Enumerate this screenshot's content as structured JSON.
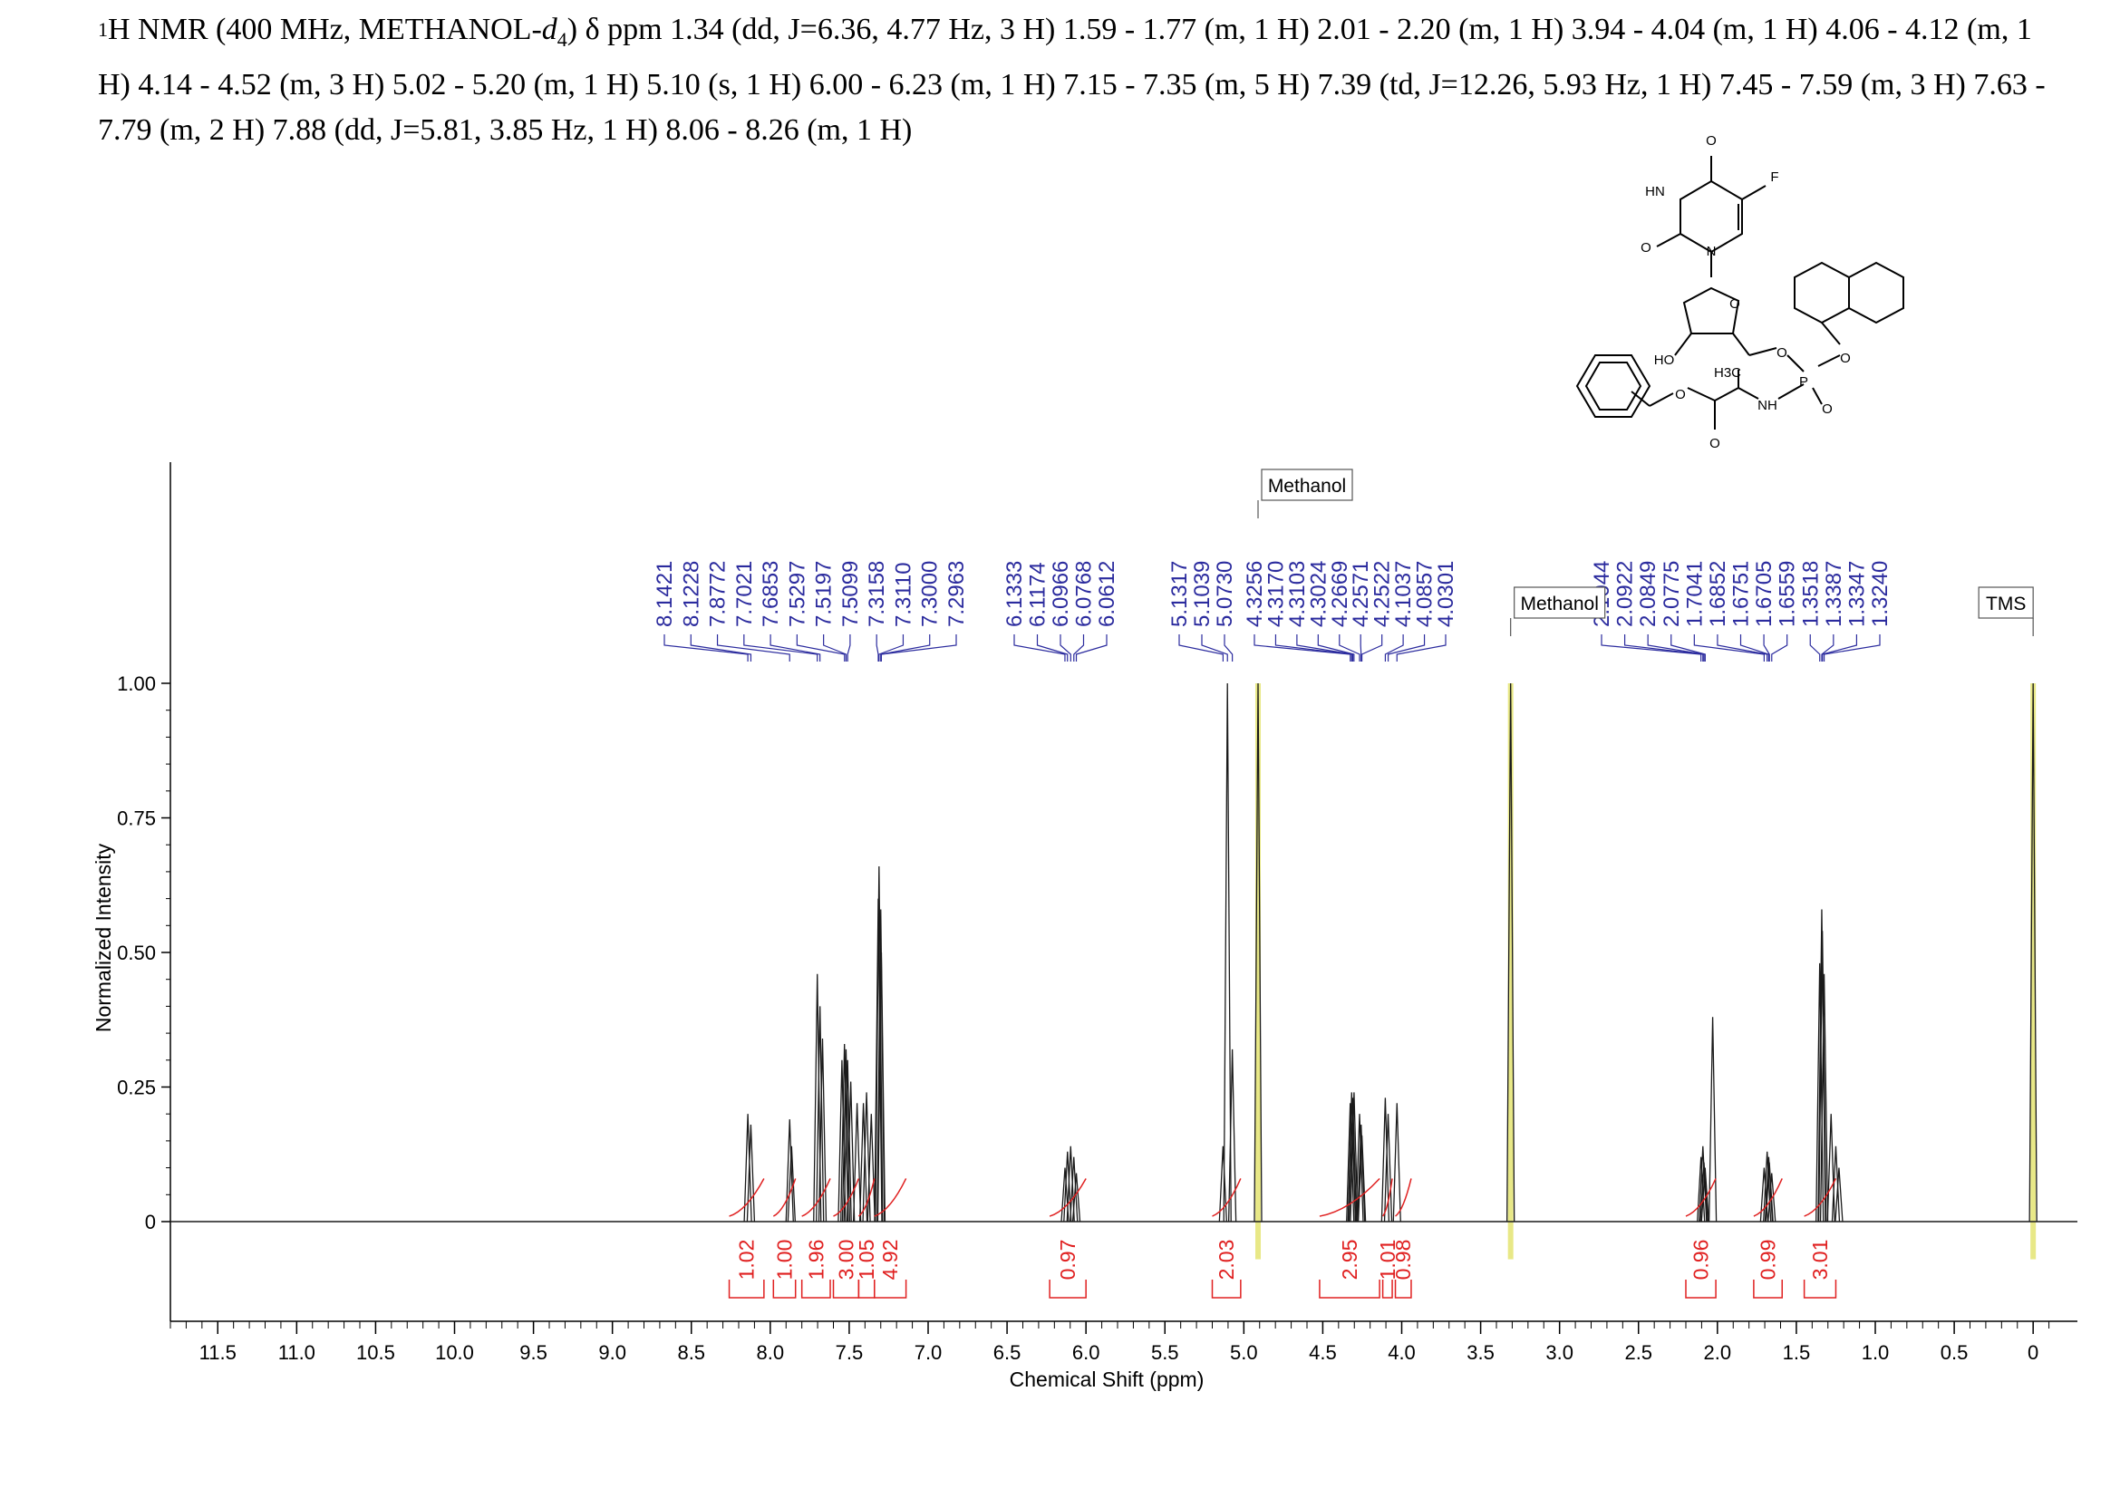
{
  "header": {
    "nucleus_sup": "1",
    "text_a": "H NMR (400 MHz, METHANOL-",
    "text_d": "d",
    "text_sub": "4",
    "text_b": ") δ ppm 1.34 (dd, J=6.36, 4.77 Hz, 3 H) 1.59 - 1.77 (m, 1 H) 2.01 - 2.20 (m, 1 H) 3.94 - 4.04 (m, 1 H) 4.06 - 4.12 (m, 1 H) 4.14 - 4.52 (m, 3 H) 5.02 - 5.20 (m, 1 H) 5.10 (s, 1 H) 6.00 - 6.23 (m, 1 H) 7.15 - 7.35 (m, 5 H) 7.39 (td, J=12.26, 5.93 Hz, 1 H) 7.45 - 7.59 (m, 3 H) 7.63 - 7.79 (m, 2 H) 7.88 (dd, J=5.81, 3.85 Hz, 1 H) 8.06 - 8.26 (m, 1 H)"
  },
  "structure": {
    "atom_labels": [
      "O",
      "F",
      "HN",
      "O",
      "N",
      "O",
      "HO",
      "O",
      "H3C",
      "P",
      "O",
      "NH",
      "O",
      "O",
      "O"
    ]
  },
  "chart_data": {
    "type": "line",
    "xlabel": "Chemical Shift (ppm)",
    "ylabel": "Normalized Intensity",
    "xlim": [
      11.8,
      -0.2
    ],
    "ylim": [
      -0.18,
      1.4
    ],
    "x_reversed": true,
    "x_ticks": [
      11.5,
      11.0,
      10.5,
      10.0,
      9.5,
      9.0,
      8.5,
      8.0,
      7.5,
      7.0,
      6.5,
      6.0,
      5.5,
      5.0,
      4.5,
      4.0,
      3.5,
      3.0,
      2.5,
      2.0,
      1.5,
      1.0,
      0.5,
      0
    ],
    "x_tick_labels": [
      "11.5",
      "11.0",
      "10.5",
      "10.0",
      "9.5",
      "9.0",
      "8.5",
      "8.0",
      "7.5",
      "7.0",
      "6.5",
      "6.0",
      "5.5",
      "5.0",
      "4.5",
      "4.0",
      "3.5",
      "3.0",
      "2.5",
      "2.0",
      "1.5",
      "1.0",
      "0.5",
      "0"
    ],
    "y_ticks": [
      0,
      0.25,
      0.5,
      0.75,
      1.0
    ],
    "y_tick_labels": [
      "0",
      "0.25",
      "0.50",
      "0.75",
      "1.00"
    ],
    "peaks": [
      {
        "ppm": 8.142,
        "h": 0.2
      },
      {
        "ppm": 8.123,
        "h": 0.18
      },
      {
        "ppm": 7.877,
        "h": 0.19
      },
      {
        "ppm": 7.865,
        "h": 0.14
      },
      {
        "ppm": 7.702,
        "h": 0.46
      },
      {
        "ppm": 7.685,
        "h": 0.4
      },
      {
        "ppm": 7.669,
        "h": 0.34
      },
      {
        "ppm": 7.546,
        "h": 0.3
      },
      {
        "ppm": 7.53,
        "h": 0.33
      },
      {
        "ppm": 7.52,
        "h": 0.32
      },
      {
        "ppm": 7.51,
        "h": 0.3
      },
      {
        "ppm": 7.49,
        "h": 0.26
      },
      {
        "ppm": 7.45,
        "h": 0.22
      },
      {
        "ppm": 7.41,
        "h": 0.22
      },
      {
        "ppm": 7.39,
        "h": 0.24
      },
      {
        "ppm": 7.36,
        "h": 0.2
      },
      {
        "ppm": 7.316,
        "h": 0.6
      },
      {
        "ppm": 7.311,
        "h": 0.66
      },
      {
        "ppm": 7.3,
        "h": 0.58
      },
      {
        "ppm": 7.296,
        "h": 0.5
      },
      {
        "ppm": 6.133,
        "h": 0.1
      },
      {
        "ppm": 6.117,
        "h": 0.13
      },
      {
        "ppm": 6.097,
        "h": 0.14
      },
      {
        "ppm": 6.077,
        "h": 0.12
      },
      {
        "ppm": 6.061,
        "h": 0.09
      },
      {
        "ppm": 5.132,
        "h": 0.14
      },
      {
        "ppm": 5.104,
        "h": 1.0
      },
      {
        "ppm": 5.073,
        "h": 0.32
      },
      {
        "ppm": 4.91,
        "h": 1.0
      },
      {
        "ppm": 4.326,
        "h": 0.22
      },
      {
        "ppm": 4.317,
        "h": 0.24
      },
      {
        "ppm": 4.31,
        "h": 0.23
      },
      {
        "ppm": 4.302,
        "h": 0.24
      },
      {
        "ppm": 4.267,
        "h": 0.2
      },
      {
        "ppm": 4.257,
        "h": 0.18
      },
      {
        "ppm": 4.252,
        "h": 0.16
      },
      {
        "ppm": 4.104,
        "h": 0.23
      },
      {
        "ppm": 4.086,
        "h": 0.2
      },
      {
        "ppm": 4.03,
        "h": 0.22
      },
      {
        "ppm": 3.31,
        "h": 1.0
      },
      {
        "ppm": 2.104,
        "h": 0.12
      },
      {
        "ppm": 2.092,
        "h": 0.14
      },
      {
        "ppm": 2.085,
        "h": 0.11
      },
      {
        "ppm": 2.078,
        "h": 0.1
      },
      {
        "ppm": 2.03,
        "h": 0.38
      },
      {
        "ppm": 1.704,
        "h": 0.1
      },
      {
        "ppm": 1.685,
        "h": 0.13
      },
      {
        "ppm": 1.675,
        "h": 0.12
      },
      {
        "ppm": 1.671,
        "h": 0.11
      },
      {
        "ppm": 1.656,
        "h": 0.09
      },
      {
        "ppm": 1.352,
        "h": 0.48
      },
      {
        "ppm": 1.339,
        "h": 0.58
      },
      {
        "ppm": 1.335,
        "h": 0.54
      },
      {
        "ppm": 1.324,
        "h": 0.46
      },
      {
        "ppm": 1.28,
        "h": 0.2
      },
      {
        "ppm": 1.25,
        "h": 0.14
      },
      {
        "ppm": 1.23,
        "h": 0.1
      },
      {
        "ppm": 0.0,
        "h": 1.0
      }
    ],
    "peak_label_groups": [
      {
        "labels": [
          "8.1421",
          "8.1228",
          "7.8772",
          "7.7021",
          "7.6853",
          "7.5297",
          "7.5197",
          "7.5099",
          "7.3158",
          "7.3110",
          "7.3000",
          "7.2963"
        ]
      },
      {
        "labels": [
          "6.1333",
          "6.1174",
          "6.0966",
          "6.0768",
          "6.0612"
        ]
      },
      {
        "labels": [
          "5.1317",
          "5.1039",
          "5.0730"
        ]
      },
      {
        "labels": [
          "4.3256",
          "4.3170",
          "4.3103",
          "4.3024",
          "4.2669",
          "4.2571",
          "4.2522",
          "4.1037",
          "4.0857",
          "4.0301"
        ]
      },
      {
        "labels": [
          "2.1044",
          "2.0922",
          "2.0849",
          "2.0775",
          "1.7041",
          "1.6852",
          "1.6751",
          "1.6705",
          "1.6559",
          "1.3518",
          "1.3387",
          "1.3347",
          "1.3240"
        ]
      }
    ],
    "integrals": [
      {
        "label": "1.02",
        "from": 8.26,
        "to": 8.04
      },
      {
        "label": "1.00",
        "from": 7.98,
        "to": 7.84
      },
      {
        "label": "1.96",
        "from": 7.8,
        "to": 7.62
      },
      {
        "label": "3.00",
        "from": 7.6,
        "to": 7.44
      },
      {
        "label": "1.05",
        "from": 7.44,
        "to": 7.34
      },
      {
        "label": "4.92",
        "from": 7.34,
        "to": 7.14
      },
      {
        "label": "0.97",
        "from": 6.23,
        "to": 6.0
      },
      {
        "label": "2.03",
        "from": 5.2,
        "to": 5.02
      },
      {
        "label": "2.95",
        "from": 4.52,
        "to": 4.14
      },
      {
        "label": "1.01",
        "from": 4.12,
        "to": 4.06
      },
      {
        "label": "0.98",
        "from": 4.04,
        "to": 3.94
      },
      {
        "label": "0.96",
        "from": 2.2,
        "to": 2.01
      },
      {
        "label": "0.99",
        "from": 1.77,
        "to": 1.59
      },
      {
        "label": "3.01",
        "from": 1.45,
        "to": 1.25
      }
    ],
    "annotations": [
      {
        "text": "Methanol",
        "ppm": 4.91
      },
      {
        "text": "Methanol",
        "ppm": 3.31
      },
      {
        "text": "TMS",
        "ppm": 0.0
      }
    ],
    "colors": {
      "spectrum": "#1a1a1a",
      "peak_labels": "#2b2b9e",
      "integrals": "#e02020",
      "solvent_highlight": "#e6e67a"
    }
  }
}
